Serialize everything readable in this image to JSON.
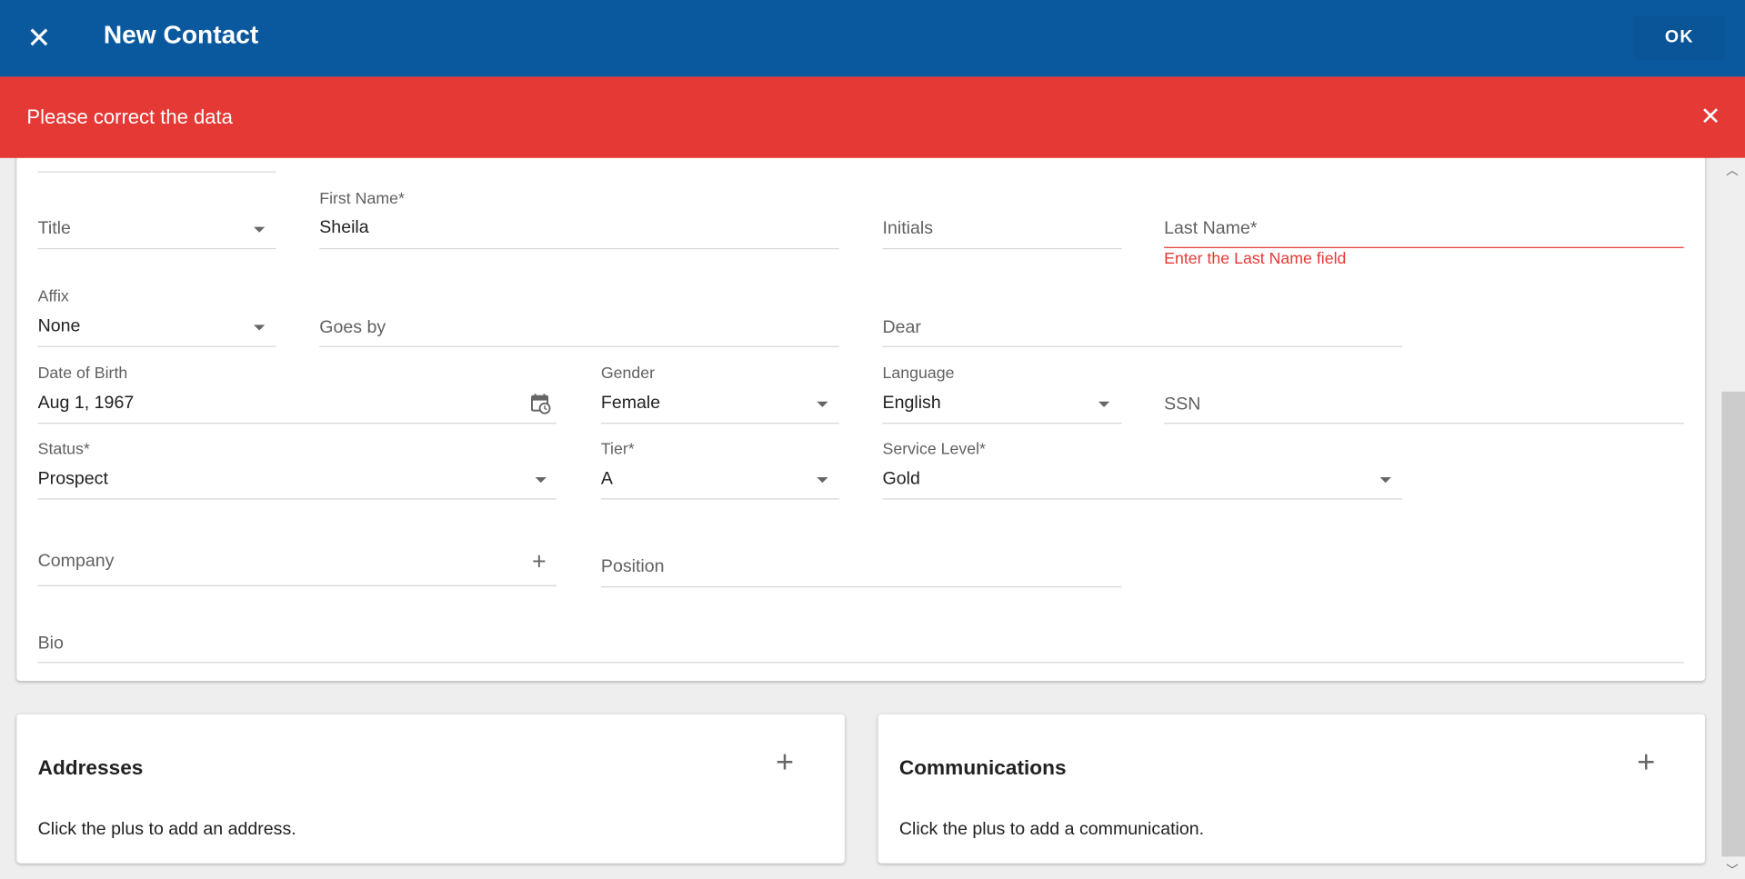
{
  "header": {
    "title": "New Contact",
    "ok_label": "OK",
    "close_icon": "close-icon",
    "color": "#0a599e"
  },
  "banner": {
    "message": "Please correct the data",
    "color": "#e53935",
    "close_icon": "close-icon"
  },
  "form": {
    "title": {
      "label": "Title",
      "value": ""
    },
    "first_name": {
      "label": "First Name*",
      "value": "Sheila"
    },
    "initials": {
      "label": "Initials",
      "value": ""
    },
    "last_name": {
      "label": "Last Name*",
      "value": "",
      "error": "Enter the Last Name field"
    },
    "affix": {
      "label": "Affix",
      "value": "None"
    },
    "goes_by": {
      "label": "Goes by",
      "value": ""
    },
    "dear": {
      "label": "Dear",
      "value": ""
    },
    "dob": {
      "label": "Date of Birth",
      "value": "Aug 1, 1967",
      "icon": "calendar-clock-icon"
    },
    "gender": {
      "label": "Gender",
      "value": "Female"
    },
    "language": {
      "label": "Language",
      "value": "English"
    },
    "ssn": {
      "label": "SSN",
      "value": ""
    },
    "status": {
      "label": "Status*",
      "value": "Prospect"
    },
    "tier": {
      "label": "Tier*",
      "value": "A"
    },
    "service_level": {
      "label": "Service Level*",
      "value": "Gold"
    },
    "company": {
      "label": "Company",
      "value": ""
    },
    "position": {
      "label": "Position",
      "value": ""
    },
    "bio": {
      "label": "Bio",
      "value": ""
    }
  },
  "addresses": {
    "title": "Addresses",
    "empty_text": "Click the plus to add an address."
  },
  "communications": {
    "title": "Communications",
    "empty_text": "Click the plus to add a communication."
  }
}
